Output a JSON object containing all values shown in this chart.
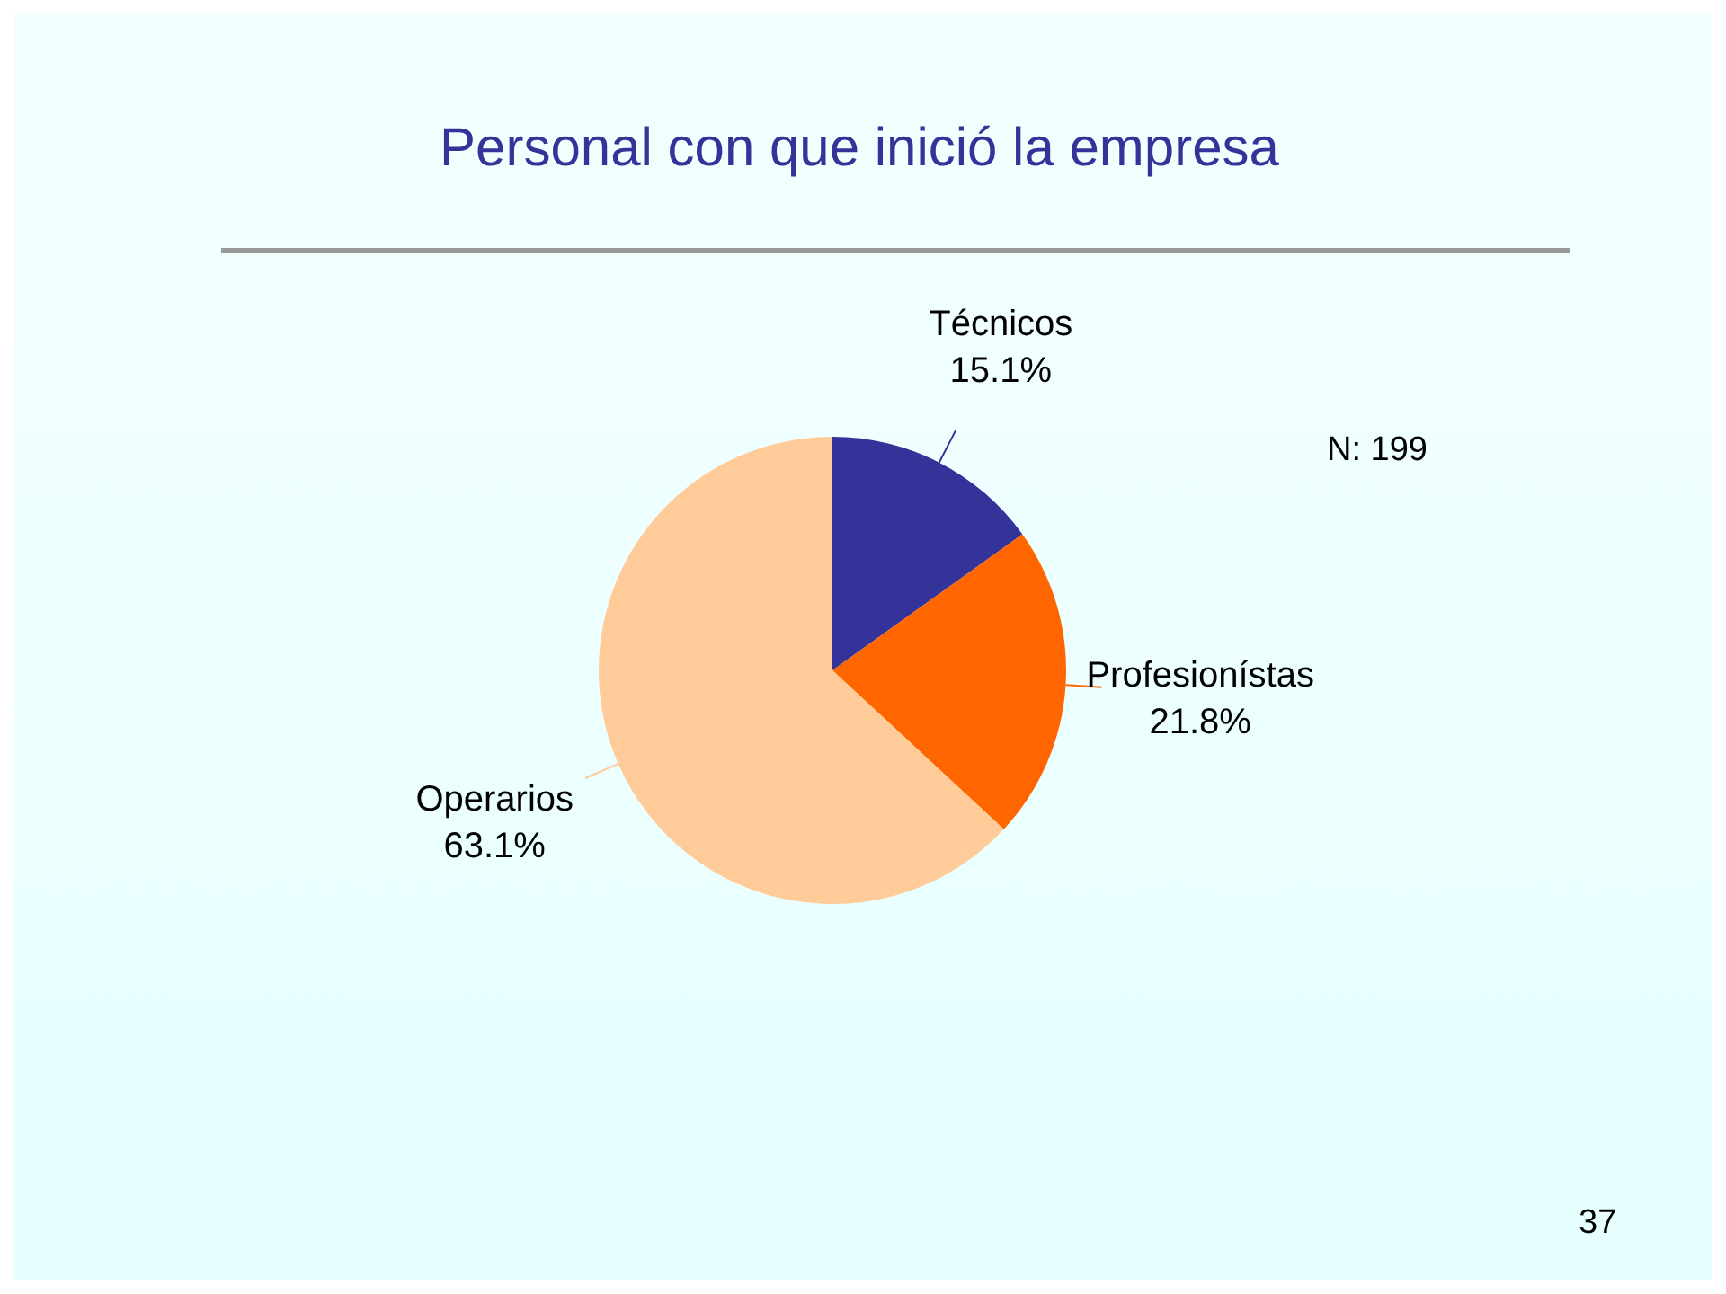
{
  "chart_data": {
    "type": "pie",
    "title": "Personal con que inició la empresa",
    "categories": [
      "Técnicos",
      "Profesionístas",
      "Operarios"
    ],
    "values": [
      15.1,
      21.8,
      63.1
    ],
    "value_labels": [
      "15.1%",
      "21.8%",
      "63.1%"
    ],
    "colors": [
      "#333399",
      "#ff6600",
      "#ffcc99"
    ],
    "annotations": [
      "N: 199",
      "37"
    ],
    "legend": false
  }
}
